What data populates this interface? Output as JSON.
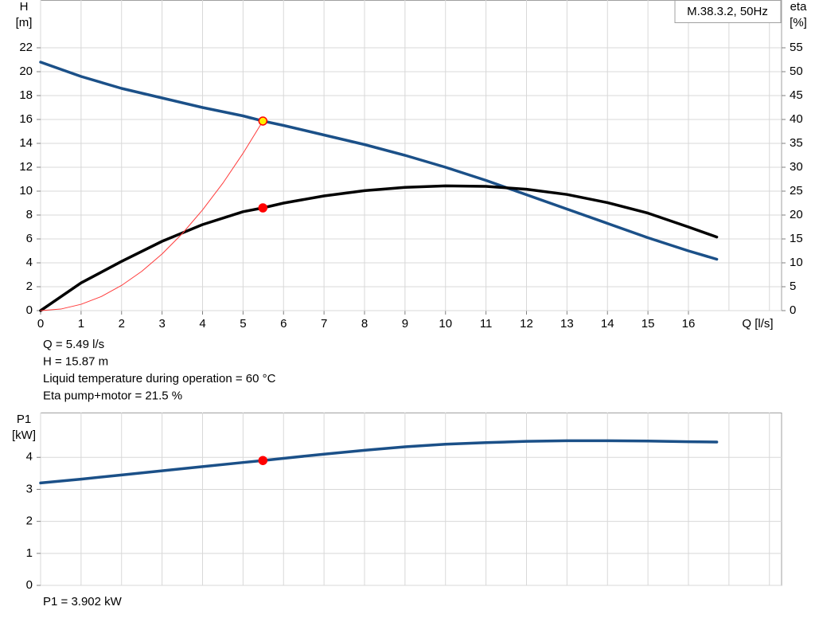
{
  "chart_data": [
    {
      "type": "line",
      "title": "M.38.3.2, 50Hz",
      "ylabel": "H",
      "yunit": "[m]",
      "y2label": "eta",
      "y2unit": "[%]",
      "xlabel": "Q [l/s]",
      "xlim": [
        0,
        18.3
      ],
      "xticks": [
        0,
        1,
        2,
        3,
        4,
        5,
        6,
        7,
        8,
        9,
        10,
        11,
        12,
        13,
        14,
        15,
        16
      ],
      "xgrid": [
        17,
        18
      ],
      "ylim": [
        0,
        26
      ],
      "yticks": [
        0,
        2,
        4,
        6,
        8,
        10,
        12,
        14,
        16,
        18,
        20,
        22
      ],
      "y2lim": [
        0,
        65
      ],
      "y2ticks": [
        0,
        5,
        10,
        15,
        20,
        25,
        30,
        35,
        40,
        45,
        50,
        55
      ],
      "grid": true,
      "series": [
        {
          "color": "#1b5088",
          "style": "thick",
          "x": [
            0,
            1,
            2,
            3,
            4,
            5,
            5.49,
            6,
            7,
            8,
            9,
            10,
            11,
            12,
            13,
            14,
            15,
            16,
            16.7
          ],
          "values": [
            20.8,
            19.6,
            18.6,
            17.8,
            17.0,
            16.3,
            15.87,
            15.5,
            14.7,
            13.9,
            13.0,
            12.0,
            10.9,
            9.7,
            8.5,
            7.3,
            6.1,
            5.0,
            4.3
          ]
        },
        {
          "color": "#000000",
          "style": "thick",
          "axis": "y2",
          "x": [
            0,
            1,
            2,
            3,
            4,
            5,
            5.49,
            6,
            7,
            8,
            9,
            10,
            11,
            12,
            13,
            14,
            15,
            16,
            16.7
          ],
          "values": [
            0,
            5.8,
            10.3,
            14.5,
            18.0,
            20.7,
            21.5,
            22.5,
            24.0,
            25.1,
            25.8,
            26.1,
            26.0,
            25.4,
            24.3,
            22.6,
            20.4,
            17.5,
            15.4
          ]
        },
        {
          "color": "#ff3b3b",
          "style": "thin",
          "x": [
            0,
            0.5,
            1,
            1.5,
            2,
            2.5,
            3,
            3.5,
            4,
            4.5,
            5,
            5.49
          ],
          "values": [
            0,
            0.13,
            0.53,
            1.18,
            2.11,
            3.29,
            4.74,
            6.45,
            8.43,
            10.66,
            13.17,
            15.87
          ]
        },
        {
          "color": "#ffee00",
          "style": "marker",
          "edge": "#ff0000",
          "x": [
            5.49
          ],
          "values": [
            15.87
          ]
        },
        {
          "color": "#ff0000",
          "style": "marker",
          "edge": "#ff0000",
          "axis": "y2",
          "x": [
            5.49
          ],
          "values": [
            21.5
          ]
        }
      ],
      "notes": [
        "Q = 5.49 l/s",
        "H = 15.87 m",
        "Liquid temperature during operation = 60 °C",
        "Eta pump+motor = 21.5 %"
      ]
    },
    {
      "type": "line",
      "ylabel": "P1",
      "yunit": "[kW]",
      "xlim": [
        0,
        18.3
      ],
      "xgrid": [
        0,
        1,
        2,
        3,
        4,
        5,
        6,
        7,
        8,
        9,
        10,
        11,
        12,
        13,
        14,
        15,
        16,
        17,
        18
      ],
      "ylim": [
        0,
        5.4
      ],
      "yticks": [
        0,
        1,
        2,
        3,
        4
      ],
      "grid": true,
      "series": [
        {
          "color": "#1b5088",
          "style": "thick",
          "x": [
            0,
            1,
            2,
            3,
            4,
            5,
            5.49,
            6,
            7,
            8,
            9,
            10,
            11,
            12,
            13,
            14,
            15,
            16,
            16.7
          ],
          "values": [
            3.2,
            3.32,
            3.45,
            3.58,
            3.71,
            3.84,
            3.902,
            3.97,
            4.1,
            4.22,
            4.33,
            4.41,
            4.46,
            4.5,
            4.52,
            4.52,
            4.51,
            4.49,
            4.48
          ]
        },
        {
          "color": "#ff0000",
          "style": "marker",
          "edge": "#ff0000",
          "x": [
            5.49
          ],
          "values": [
            3.902
          ]
        }
      ],
      "notes": [
        "P1 = 3.902 kW"
      ]
    }
  ]
}
